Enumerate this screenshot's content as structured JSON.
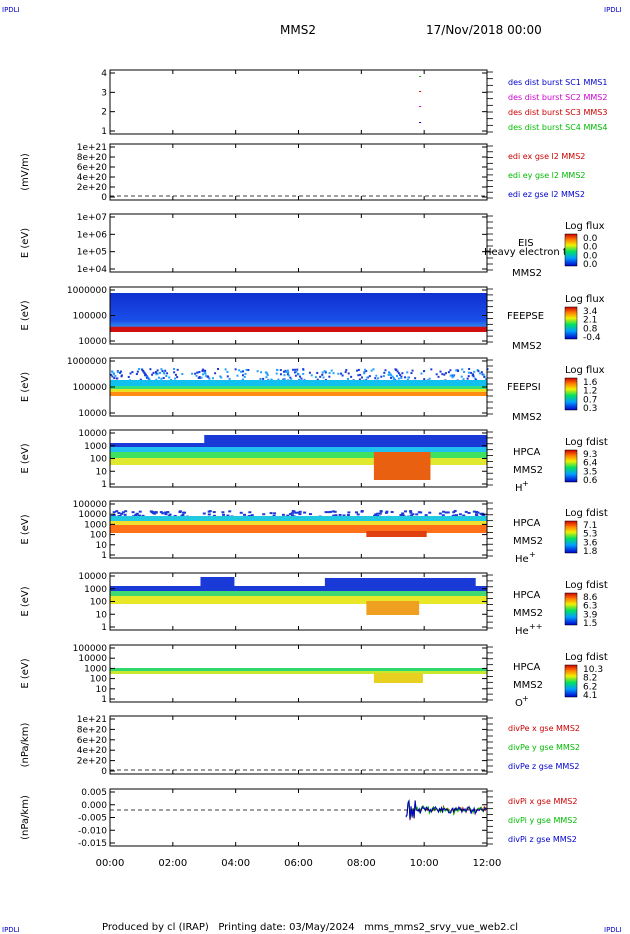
{
  "header": {
    "corner_tl": "IPDLI",
    "corner_tr": "IPDLI",
    "corner_bl": "IPDLI",
    "corner_br": "IPDLI",
    "spacecraft": "MMS2",
    "date": "17/Nov/2018 00:00"
  },
  "footer": {
    "text": "Produced by cl (IRAP)   Printing date: 03/May/2024   mms_mms2_srvy_vue_web2.cl"
  },
  "chart_data": {
    "type": "multi-panel time series",
    "x_ticks": [
      "00:00",
      "02:00",
      "04:00",
      "06:00",
      "08:00",
      "10:00",
      "12:00"
    ],
    "panels": [
      {
        "id": "des-burst",
        "ylabel": "",
        "yticks": [
          "4",
          "3",
          "2",
          "1"
        ],
        "legend": [
          {
            "text": "des dist burst SC1 MMS1",
            "color": "#0000cc"
          },
          {
            "text": "des dist burst SC2 MMS2",
            "color": "#cc00cc"
          },
          {
            "text": "des dist burst SC3 MMS3",
            "color": "#cc0000"
          },
          {
            "text": "des dist burst SC4 MMS4",
            "color": "#00bb00"
          }
        ]
      },
      {
        "id": "edi-e",
        "ylabel": "(mV/m)",
        "yticks": [
          "1e+21",
          "8e+20",
          "6e+20",
          "4e+20",
          "2e+20",
          "0"
        ],
        "legend": [
          {
            "text": "edi ex gse l2 MMS2",
            "color": "#cc0000"
          },
          {
            "text": "edi ey gse l2 MMS2",
            "color": "#00bb00"
          },
          {
            "text": "edi ez gse l2 MMS2",
            "color": "#0000cc"
          }
        ]
      },
      {
        "id": "eis",
        "ylabel": "E (eV)",
        "yticks": [
          "1e+07",
          "1e+06",
          "1e+05",
          "1e+04"
        ],
        "labels": [
          "EIS",
          "MMS2"
        ],
        "overlay": "Heavy electron to",
        "cbar_title": "Log flux",
        "cbar_ticks": [
          "0.0",
          "0.0",
          "0.0",
          "0.0"
        ]
      },
      {
        "id": "feepse",
        "ylabel": "E (eV)",
        "yticks": [
          "1000000",
          "100000",
          "10000"
        ],
        "labels": [
          "FEEPSE",
          "MMS2"
        ],
        "cbar_title": "Log flux",
        "cbar_ticks": [
          "3.4",
          "2.1",
          "0.8",
          "-0.4"
        ]
      },
      {
        "id": "feepsi",
        "ylabel": "E (eV)",
        "yticks": [
          "1000000",
          "100000",
          "10000"
        ],
        "labels": [
          "FEEPSI",
          "MMS2"
        ],
        "cbar_title": "Log flux",
        "cbar_ticks": [
          "1.6",
          "1.2",
          "0.7",
          "0.3"
        ]
      },
      {
        "id": "hpca-h",
        "ylabel": "E (eV)",
        "yticks": [
          "10000",
          "1000",
          "100",
          "10",
          "1"
        ],
        "labels": [
          "HPCA",
          "MMS2",
          "H",
          "+"
        ],
        "cbar_title": "Log fdist",
        "cbar_ticks": [
          "9.3",
          "6.4",
          "3.5",
          "0.6"
        ]
      },
      {
        "id": "hpca-he",
        "ylabel": "E (eV)",
        "yticks": [
          "100000",
          "10000",
          "1000",
          "100",
          "10",
          "1"
        ],
        "labels": [
          "HPCA",
          "MMS2",
          "He",
          "+"
        ],
        "cbar_title": "Log fdist",
        "cbar_ticks": [
          "7.1",
          "5.3",
          "3.6",
          "1.8"
        ]
      },
      {
        "id": "hpca-hepp",
        "ylabel": "E (eV)",
        "yticks": [
          "10000",
          "1000",
          "100",
          "10",
          "1"
        ],
        "labels": [
          "HPCA",
          "MMS2",
          "He",
          "++"
        ],
        "cbar_title": "Log fdist",
        "cbar_ticks": [
          "8.6",
          "6.3",
          "3.9",
          "1.5"
        ]
      },
      {
        "id": "hpca-o",
        "ylabel": "E (eV)",
        "yticks": [
          "100000",
          "10000",
          "1000",
          "100",
          "10",
          "1"
        ],
        "labels": [
          "HPCA",
          "MMS2",
          "O",
          "+"
        ],
        "cbar_title": "Log fdist",
        "cbar_ticks": [
          "10.3",
          "8.2",
          "6.2",
          "4.1"
        ]
      },
      {
        "id": "divpe",
        "ylabel": "(nPa/km)",
        "yticks": [
          "1e+21",
          "8e+20",
          "6e+20",
          "4e+20",
          "2e+20",
          "0"
        ],
        "legend": [
          {
            "text": "divPe x gse MMS2",
            "color": "#cc0000"
          },
          {
            "text": "divPe y gse MMS2",
            "color": "#00bb00"
          },
          {
            "text": "divPe z gse MMS2",
            "color": "#0000cc"
          }
        ]
      },
      {
        "id": "divpi",
        "ylabel": "(nPa/km)",
        "yticks": [
          "0.005",
          "0.000",
          "-0.005",
          "-0.010",
          "-0.015"
        ],
        "legend": [
          {
            "text": "divPi x gse MMS2",
            "color": "#cc0000"
          },
          {
            "text": "divPi y gse MMS2",
            "color": "#00bb00"
          },
          {
            "text": "divPi z gse MMS2",
            "color": "#0000cc"
          }
        ]
      }
    ]
  }
}
